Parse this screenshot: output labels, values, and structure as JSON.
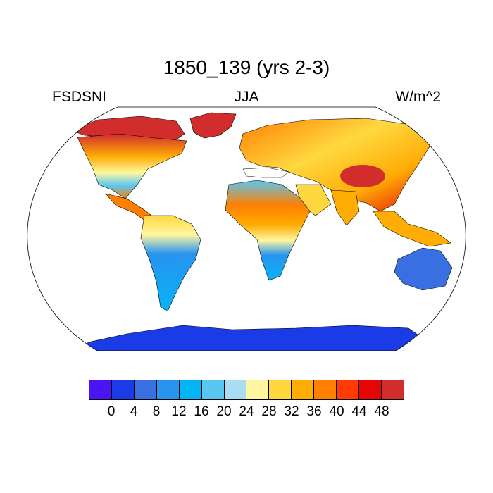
{
  "title": "1850_139 (yrs 2-3)",
  "left_label": "FSDSNI",
  "center_label": "JJA",
  "right_label": "W/m^2",
  "colorbar": {
    "colors": [
      "#4a14f5",
      "#1a3be6",
      "#3a6fe2",
      "#2894f0",
      "#05b4f5",
      "#5ac6f2",
      "#aadcf2",
      "#fff7a0",
      "#ffd840",
      "#ffad05",
      "#ff7f00",
      "#ff3a05",
      "#e60505",
      "#d22d2d"
    ],
    "labels": [
      "0",
      "4",
      "8",
      "12",
      "16",
      "20",
      "24",
      "28",
      "32",
      "36",
      "40",
      "44",
      "48"
    ]
  },
  "palette": {
    "land_low": "#2894f0",
    "land_mid": "#fff7a0",
    "land_high": "#e60505",
    "antarctica": "#1a3be6",
    "border": "#000000"
  }
}
